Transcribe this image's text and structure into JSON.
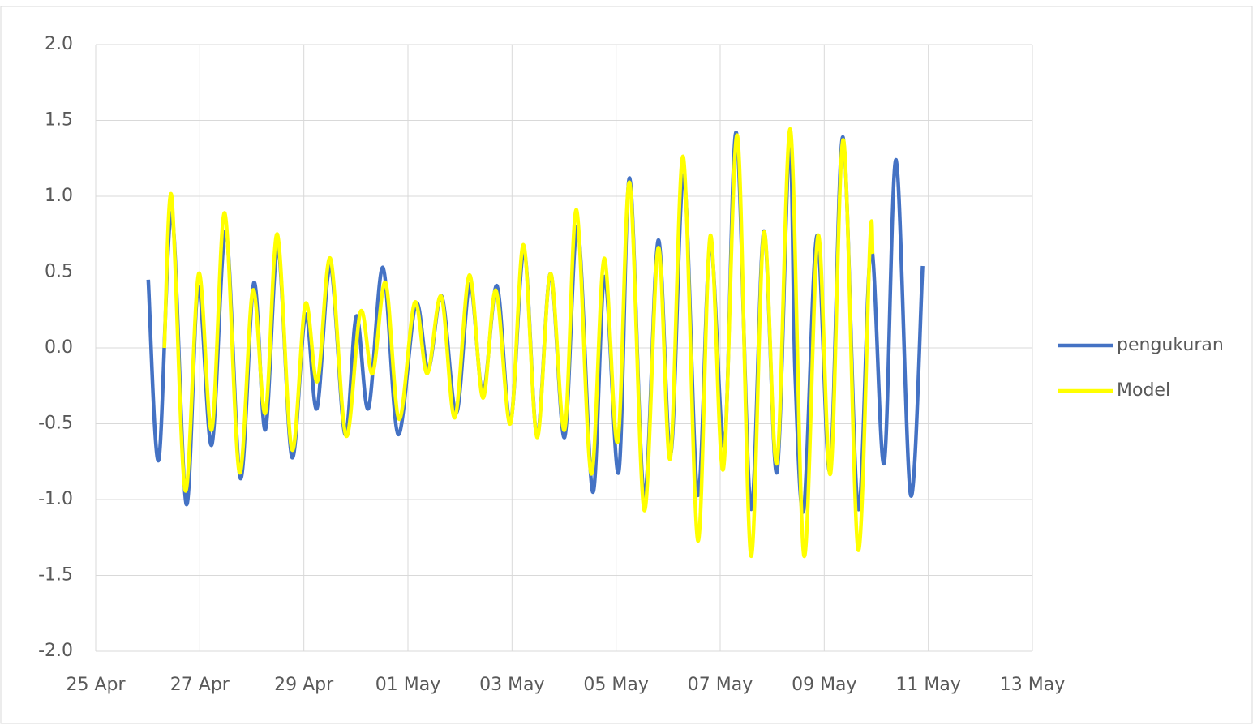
{
  "chart_data": {
    "type": "line",
    "xlim": [
      0,
      18
    ],
    "xticks": [
      {
        "value": 0,
        "label": "25 Apr"
      },
      {
        "value": 2,
        "label": "27 Apr"
      },
      {
        "value": 4,
        "label": "29 Apr"
      },
      {
        "value": 6,
        "label": "01 May"
      },
      {
        "value": 8,
        "label": "03 May"
      },
      {
        "value": 10,
        "label": "05 May"
      },
      {
        "value": 12,
        "label": "07 May"
      },
      {
        "value": 14,
        "label": "09 May"
      },
      {
        "value": 16,
        "label": "11 May"
      },
      {
        "value": 18,
        "label": "13 May"
      }
    ],
    "ylim": [
      -2,
      2
    ],
    "yticks": [
      {
        "value": -2,
        "label": "-2.0"
      },
      {
        "value": -1.5,
        "label": "-1.5"
      },
      {
        "value": -1,
        "label": "-1.0"
      },
      {
        "value": -0.5,
        "label": "-0.5"
      },
      {
        "value": 0,
        "label": "0.0"
      },
      {
        "value": 0.5,
        "label": "0.5"
      },
      {
        "value": 1,
        "label": "1.0"
      },
      {
        "value": 1.5,
        "label": "1.5"
      },
      {
        "value": 2,
        "label": "2.0"
      }
    ],
    "grid": true,
    "legend": "right",
    "series": [
      {
        "name": "pengukuran",
        "color": "#4472c4",
        "x": [
          1.01,
          1.21,
          1.46,
          1.74,
          1.97,
          2.23,
          2.5,
          2.78,
          3.04,
          3.26,
          3.5,
          3.77,
          4.03,
          4.25,
          4.51,
          4.79,
          5.01,
          5.24,
          5.52,
          5.81,
          6.15,
          6.39,
          6.65,
          6.93,
          7.19,
          7.44,
          7.71,
          7.97,
          8.23,
          8.48,
          8.74,
          9.01,
          9.26,
          9.55,
          9.78,
          10.05,
          10.26,
          10.54,
          10.81,
          11.05,
          11.3,
          11.57,
          11.81,
          12.08,
          12.31,
          12.59,
          12.84,
          13.09,
          13.33,
          13.44,
          13.61,
          13.86,
          14.11,
          14.36,
          14.65,
          14.9,
          15.15,
          15.38,
          15.66,
          15.89
        ],
        "values": [
          0.45,
          -0.74,
          0.89,
          -1.03,
          0.4,
          -0.64,
          0.77,
          -0.86,
          0.43,
          -0.54,
          0.66,
          -0.72,
          0.22,
          -0.4,
          0.54,
          -0.57,
          0.21,
          -0.4,
          0.53,
          -0.57,
          0.29,
          -0.14,
          0.34,
          -0.43,
          0.42,
          -0.3,
          0.41,
          -0.49,
          0.64,
          -0.58,
          0.49,
          -0.59,
          0.8,
          -0.95,
          0.47,
          -0.82,
          1.12,
          -0.98,
          0.71,
          -0.7,
          1.14,
          -0.97,
          0.69,
          -0.64,
          1.42,
          -1.06,
          0.77,
          -0.82,
          1.37,
          -0.17,
          -1.06,
          0.74,
          -0.81,
          1.39,
          -1.06,
          0.66,
          -0.76,
          1.24,
          -0.97,
          0.54
        ]
      },
      {
        "name": "Model",
        "color": "#ffff00",
        "x": [
          1.32,
          1.46,
          1.72,
          1.98,
          2.23,
          2.48,
          2.76,
          3.02,
          3.26,
          3.49,
          3.77,
          4.03,
          4.26,
          4.51,
          4.81,
          5.09,
          5.32,
          5.57,
          5.83,
          6.13,
          6.37,
          6.64,
          6.9,
          7.18,
          7.44,
          7.69,
          7.97,
          8.22,
          8.48,
          8.74,
          9.01,
          9.24,
          9.52,
          9.77,
          10.03,
          10.26,
          10.54,
          10.81,
          11.04,
          11.29,
          11.57,
          11.81,
          12.06,
          12.33,
          12.59,
          12.84,
          13.09,
          13.35,
          13.61,
          13.88,
          14.12,
          14.37,
          14.65,
          14.88,
          14.93
        ],
        "values": [
          0,
          1,
          -0.94,
          0.49,
          -0.54,
          0.89,
          -0.82,
          0.38,
          -0.43,
          0.75,
          -0.67,
          0.29,
          -0.22,
          0.59,
          -0.58,
          0.24,
          -0.17,
          0.43,
          -0.47,
          0.3,
          -0.17,
          0.34,
          -0.46,
          0.48,
          -0.33,
          0.38,
          -0.5,
          0.68,
          -0.59,
          0.49,
          -0.54,
          0.91,
          -0.83,
          0.59,
          -0.62,
          1.09,
          -1.07,
          0.66,
          -0.73,
          1.26,
          -1.27,
          0.74,
          -0.8,
          1.4,
          -1.37,
          0.76,
          -0.76,
          1.44,
          -1.37,
          0.74,
          -0.83,
          1.37,
          -1.33,
          0.71,
          0.62
        ]
      }
    ]
  }
}
